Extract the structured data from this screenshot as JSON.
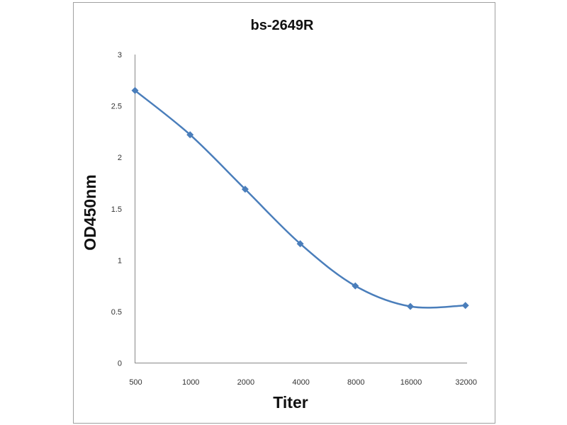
{
  "chart_data": {
    "type": "line",
    "title": "bs-2649R",
    "xlabel": "Titer",
    "ylabel": "OD450nm",
    "categories": [
      "500",
      "1000",
      "2000",
      "4000",
      "8000",
      "16000",
      "32000"
    ],
    "series": [
      {
        "values": [
          2.65,
          2.22,
          1.69,
          1.16,
          0.75,
          0.55,
          0.56
        ]
      }
    ],
    "ylim": [
      0,
      3
    ],
    "yticks": [
      "0",
      "0.5",
      "1",
      "1.5",
      "2",
      "2.5",
      "3"
    ],
    "grid": false,
    "smooth": true,
    "marker": "diamond",
    "color": "#4a7ebb"
  }
}
